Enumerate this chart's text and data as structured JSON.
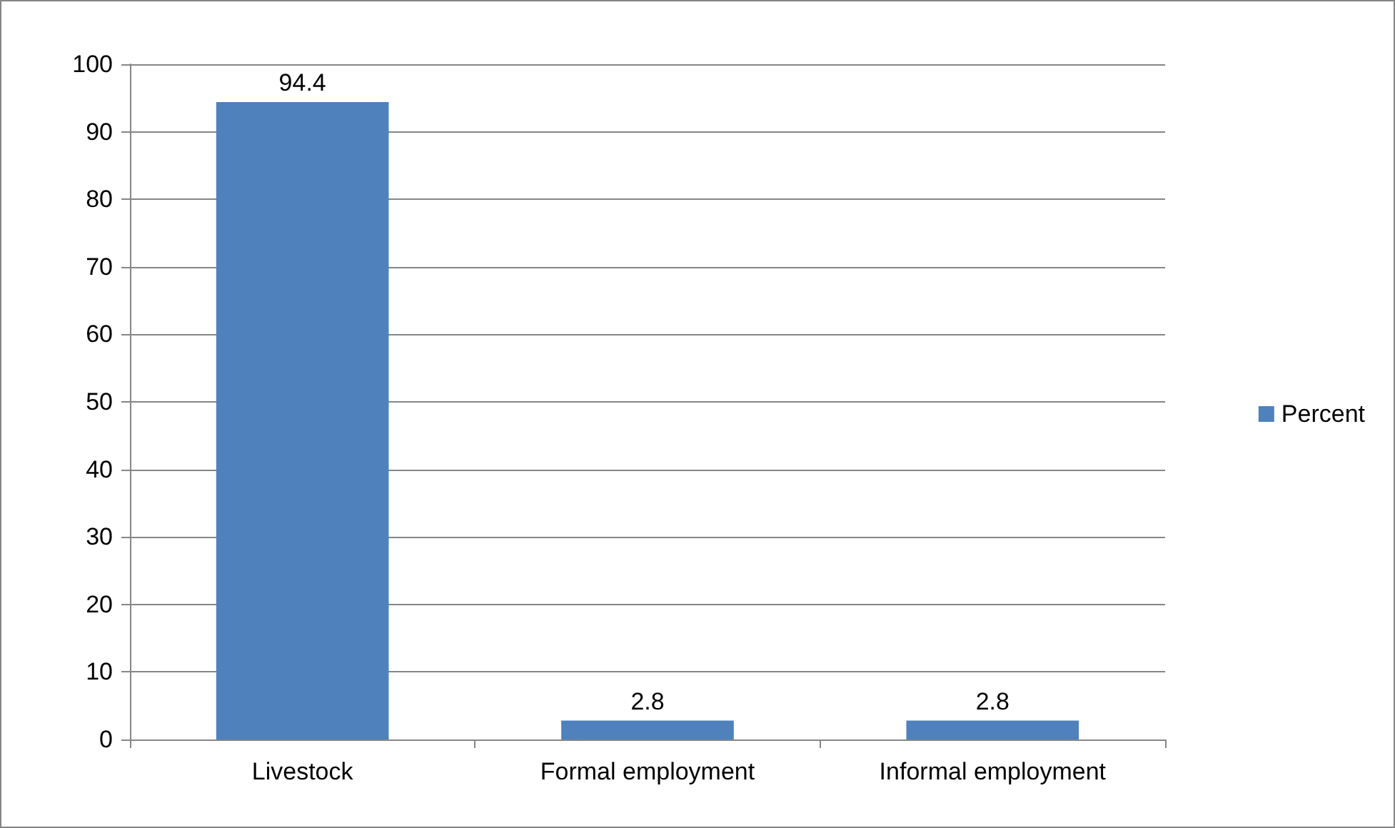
{
  "chart_data": {
    "type": "bar",
    "categories": [
      "Livestock",
      "Formal employment",
      "Informal employment"
    ],
    "series": [
      {
        "name": "Percent",
        "color": "#4f81bd",
        "values": [
          94.4,
          2.8,
          2.8
        ]
      }
    ],
    "ylim": [
      0,
      100
    ],
    "yticks": [
      0,
      10,
      20,
      30,
      40,
      50,
      60,
      70,
      80,
      90,
      100
    ],
    "grid": "y",
    "legend": "right",
    "data_labels": true
  }
}
